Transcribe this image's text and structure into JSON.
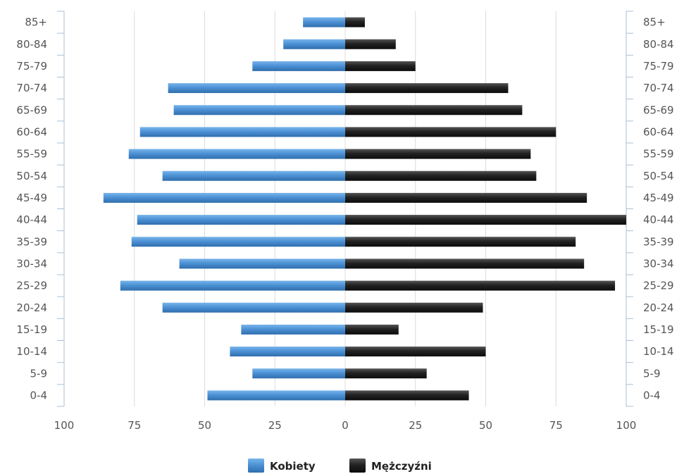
{
  "chart_data": {
    "type": "bar",
    "orientation": "horizontal",
    "layout": "population-pyramid",
    "categories": [
      "85+",
      "80-84",
      "75-79",
      "70-74",
      "65-69",
      "60-64",
      "55-59",
      "50-54",
      "45-49",
      "40-44",
      "35-39",
      "30-34",
      "25-29",
      "20-24",
      "15-19",
      "10-14",
      "5-9",
      "0-4"
    ],
    "series": [
      {
        "name": "Kobiety",
        "color": "#4a8ed0",
        "side": "left",
        "values": [
          15,
          22,
          33,
          63,
          61,
          73,
          77,
          65,
          86,
          74,
          76,
          59,
          80,
          65,
          37,
          41,
          33,
          49
        ]
      },
      {
        "name": "Mężczyźni",
        "color": "#1e1e1e",
        "side": "right",
        "values": [
          7,
          18,
          25,
          58,
          63,
          75,
          66,
          68,
          86,
          100,
          82,
          85,
          96,
          49,
          19,
          50,
          29,
          44
        ]
      }
    ],
    "xlim": [
      -100,
      100
    ],
    "x_ticks": [
      "100",
      "75",
      "50",
      "25",
      "0",
      "25",
      "50",
      "75",
      "100"
    ],
    "grid": true,
    "legend_position": "bottom-center",
    "title": "",
    "xlabel": "",
    "ylabel": ""
  }
}
